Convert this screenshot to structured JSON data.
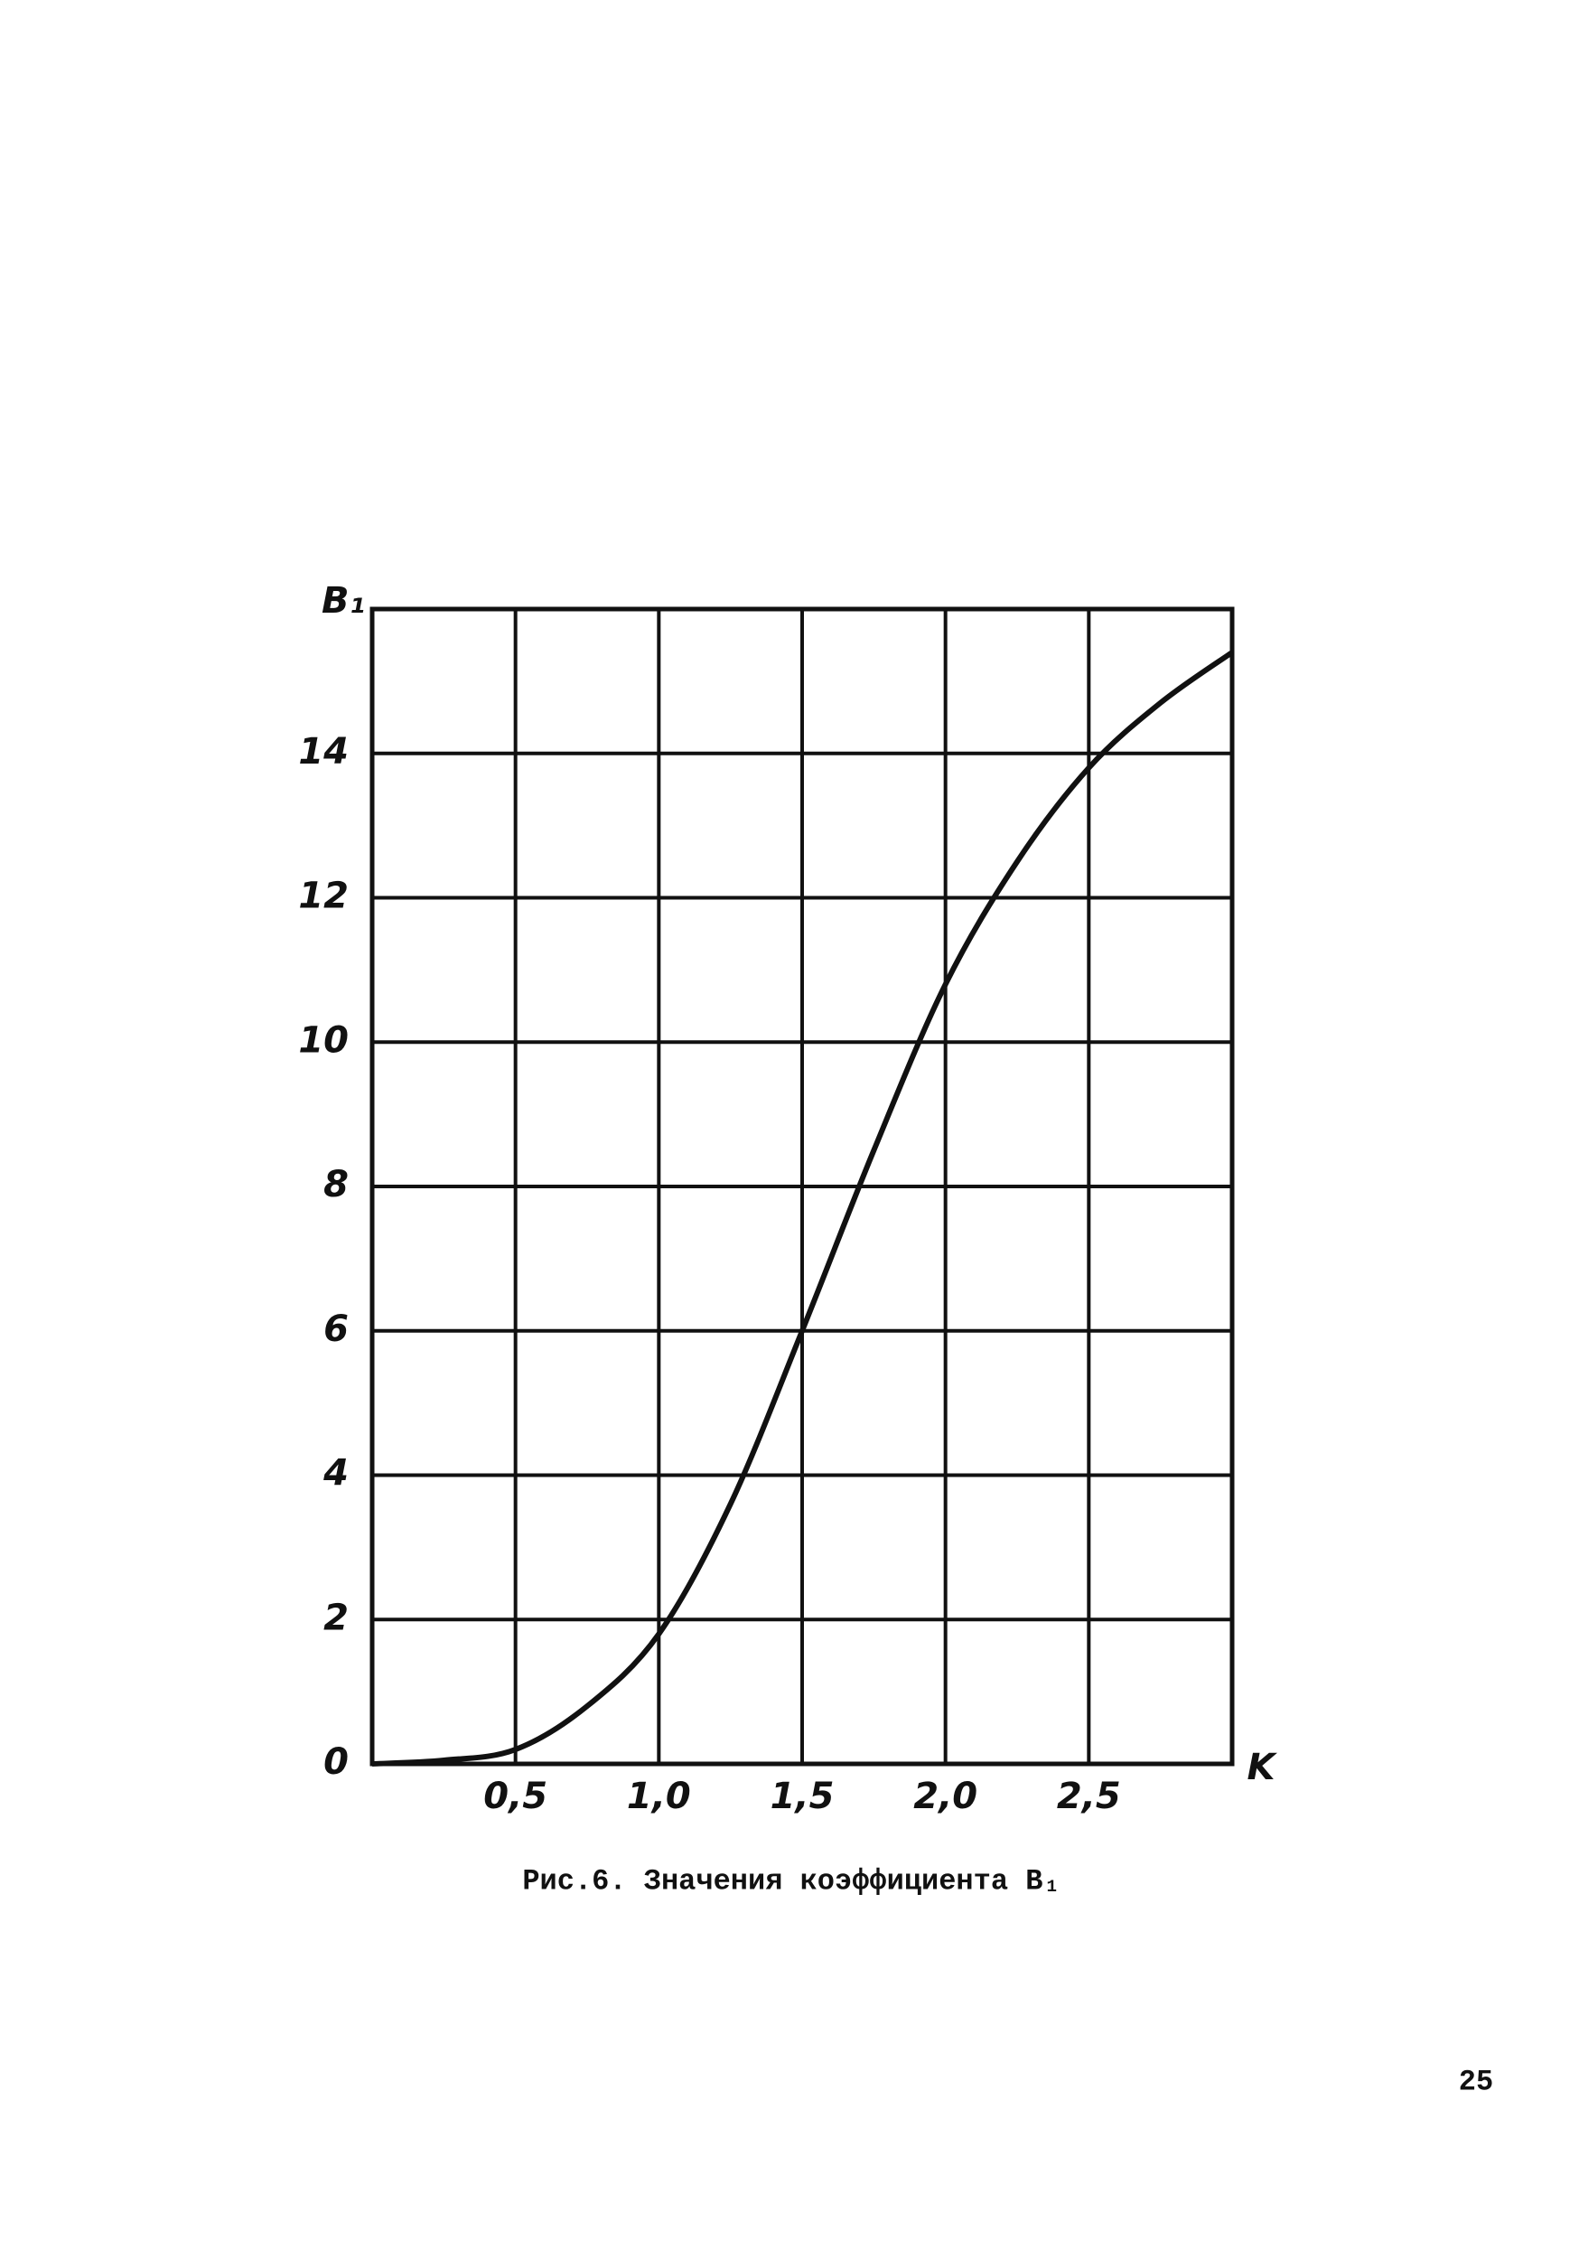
{
  "chart_data": {
    "type": "line",
    "y_label": "B₁",
    "x_label": "K",
    "caption": "Рис.6. Значения коэффициента B₁",
    "x": [
      0,
      0.25,
      0.5,
      0.75,
      1.0,
      1.25,
      1.5,
      1.75,
      2.0,
      2.25,
      2.5,
      2.75,
      3.0
    ],
    "series": [
      {
        "color": "#111111",
        "values": [
          0,
          0.05,
          0.2,
          0.8,
          1.8,
          3.6,
          6.0,
          8.5,
          10.8,
          12.5,
          13.8,
          14.7,
          15.4
        ]
      }
    ],
    "xlim": [
      0,
      3.0
    ],
    "ylim": [
      0,
      16
    ],
    "xticks": [
      {
        "value": 0.5,
        "label": "0,5"
      },
      {
        "value": 1.0,
        "label": "1,0"
      },
      {
        "value": 1.5,
        "label": "1,5"
      },
      {
        "value": 2.0,
        "label": "2,0"
      },
      {
        "value": 2.5,
        "label": "2,5"
      }
    ],
    "yticks": [
      0,
      2,
      4,
      6,
      8,
      10,
      12,
      14
    ],
    "grid": true
  },
  "page_number": "25"
}
